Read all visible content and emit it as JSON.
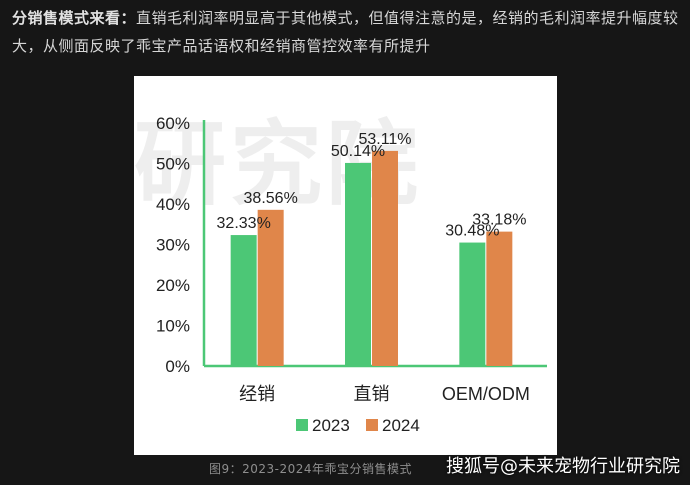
{
  "intro": {
    "lead": "分销售模式来看：",
    "body": "直销毛利润率明显高于其他模式，但值得注意的是，经销的毛利润率提升幅度较大，从侧面反映了乖宝产品话语权和经销商管控效率有所提升"
  },
  "watermark": "研究院",
  "chart_data": {
    "type": "bar",
    "categories": [
      "经销",
      "直销",
      "OEM/ODM"
    ],
    "series": [
      {
        "name": "2023",
        "values": [
          32.33,
          50.14,
          30.48
        ],
        "labels": [
          "32.33%",
          "50.14%",
          "30.48%"
        ],
        "color": "#4cc776"
      },
      {
        "name": "2024",
        "values": [
          38.56,
          53.11,
          33.18
        ],
        "labels": [
          "38.56%",
          "53.11%",
          "33.18%"
        ],
        "color": "#e0864a"
      }
    ],
    "ylim": [
      0,
      60
    ],
    "yticks": [
      "0%",
      "10%",
      "20%",
      "30%",
      "40%",
      "50%",
      "60%"
    ],
    "axis_color": "#4cc776",
    "legend": "bottom"
  },
  "caption": "图9：2023-2024年乖宝分销售模式",
  "source": "搜狐号@未来宠物行业研究院"
}
